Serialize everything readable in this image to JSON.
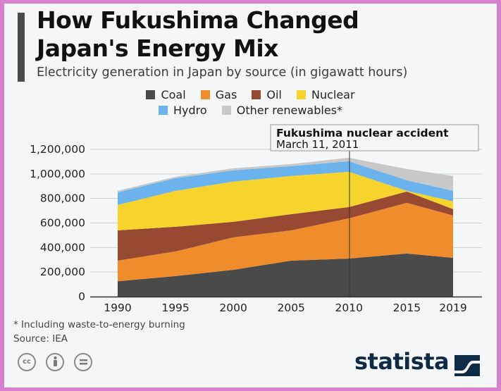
{
  "header": {
    "title_line1": "How Fukushima Changed",
    "title_line2": "Japan's Energy Mix",
    "subtitle": "Electricity generation in Japan by source (in gigawatt hours)"
  },
  "legend": {
    "row1": [
      {
        "label": "Coal",
        "color": "#4a4a4a"
      },
      {
        "label": "Gas",
        "color": "#ef8c2b"
      },
      {
        "label": "Oil",
        "color": "#974a31"
      },
      {
        "label": "Nuclear",
        "color": "#f7d42d"
      }
    ],
    "row2": [
      {
        "label": "Hydro",
        "color": "#6bb3ec"
      },
      {
        "label": "Other renewables*",
        "color": "#c8c8c8"
      }
    ]
  },
  "annotation": {
    "line1": "Fukushima nuclear accident",
    "line2": "March 11, 2011"
  },
  "footer": {
    "note": "* Including waste-to-energy burning",
    "source": "Source: IEA",
    "brand": "statista",
    "license_icons": [
      "cc-icon",
      "attribution-icon",
      "no-derivatives-icon"
    ]
  },
  "chart_data": {
    "type": "area",
    "stacked": true,
    "title": "How Fukushima Changed Japan's Energy Mix",
    "subtitle": "Electricity generation in Japan by source (in gigawatt hours)",
    "xlabel": "",
    "ylabel": "",
    "x": [
      1990,
      1995,
      2000,
      2005,
      2010,
      2015,
      2019
    ],
    "x_tick_labels": [
      "1990",
      "1995",
      "2000",
      "2005",
      "2010",
      "2015",
      "2019"
    ],
    "y_tick_labels": [
      "0",
      "200,000",
      "400,000",
      "600,000",
      "800,000",
      "1,000,000",
      "1,200,000"
    ],
    "ylim": [
      0,
      1200000
    ],
    "grid": true,
    "legend_position": "top",
    "series": [
      {
        "name": "Coal",
        "color": "#4a4a4a",
        "values": [
          125000,
          167000,
          218000,
          293000,
          310000,
          351000,
          316000
        ]
      },
      {
        "name": "Gas",
        "color": "#ef8c2b",
        "values": [
          168000,
          201000,
          265000,
          247000,
          328000,
          413000,
          345000
        ]
      },
      {
        "name": "Oil",
        "color": "#974a31",
        "values": [
          247000,
          201000,
          126000,
          132000,
          92000,
          92000,
          52000
        ]
      },
      {
        "name": "Nuclear",
        "color": "#f7d42d",
        "values": [
          207000,
          293000,
          328000,
          311000,
          287000,
          6000,
          63000
        ]
      },
      {
        "name": "Hydro",
        "color": "#6bb3ec",
        "values": [
          103000,
          103000,
          92000,
          80000,
          86000,
          86000,
          86000
        ]
      },
      {
        "name": "Other renewables*",
        "color": "#c8c8c8",
        "values": [
          12000,
          12000,
          17000,
          17000,
          29000,
          92000,
          121000
        ]
      }
    ],
    "annotations": [
      {
        "x": 2011.2,
        "type": "vline",
        "text": "Fukushima nuclear accident\nMarch 11, 2011"
      }
    ]
  }
}
